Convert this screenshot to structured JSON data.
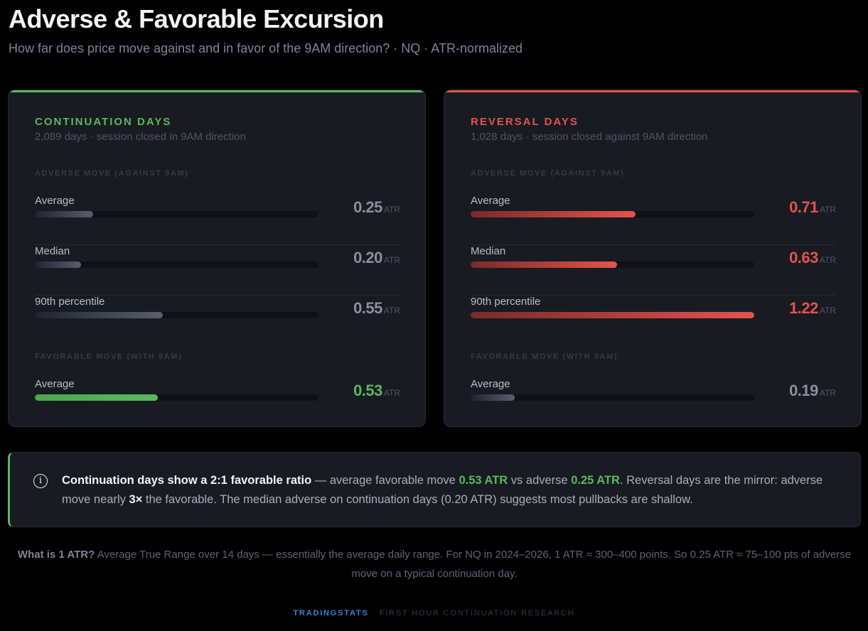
{
  "header": {
    "title": "Adverse & Favorable Excursion",
    "subtitle": "How far does price move against and in favor of the 9AM direction? · NQ · ATR-normalized"
  },
  "colors": {
    "green": "#5cb85c",
    "red": "#e5534b",
    "neutral": "#8a919d"
  },
  "scale_max_atr": 1.22,
  "cards": [
    {
      "title": "CONTINUATION DAYS",
      "desc": "2,089 days · session closed in 9AM direction",
      "accent": "#5cb85c",
      "adverse_label": "ADVERSE MOVE (AGAINST 9AM)",
      "favorable_label": "FAVORABLE MOVE (WITH 9AM)",
      "rows": [
        {
          "label": "Average",
          "value": "0.25",
          "num": 0.25,
          "unit": "ATR",
          "tone": "neutral"
        },
        {
          "label": "Median",
          "value": "0.20",
          "num": 0.2,
          "unit": "ATR",
          "tone": "neutral"
        },
        {
          "label": "90th percentile",
          "value": "0.55",
          "num": 0.55,
          "unit": "ATR",
          "tone": "neutral"
        },
        {
          "label": "Average",
          "value": "0.53",
          "num": 0.53,
          "unit": "ATR",
          "tone": "green"
        }
      ]
    },
    {
      "title": "REVERSAL DAYS",
      "desc": "1,028 days · session closed against 9AM direction",
      "accent": "#e5534b",
      "adverse_label": "ADVERSE MOVE (AGAINST 9AM)",
      "favorable_label": "FAVORABLE MOVE (WITH 9AM)",
      "rows": [
        {
          "label": "Average",
          "value": "0.71",
          "num": 0.71,
          "unit": "ATR",
          "tone": "red"
        },
        {
          "label": "Median",
          "value": "0.63",
          "num": 0.63,
          "unit": "ATR",
          "tone": "red"
        },
        {
          "label": "90th percentile",
          "value": "1.22",
          "num": 1.22,
          "unit": "ATR",
          "tone": "red"
        },
        {
          "label": "Average",
          "value": "0.19",
          "num": 0.19,
          "unit": "ATR",
          "tone": "neutral"
        }
      ]
    }
  ],
  "insight": {
    "icon": "info-icon",
    "bold": "Continuation days show a 2:1 favorable ratio",
    "t1": " — average favorable move ",
    "v1": "0.53 ATR",
    "t2": " vs adverse ",
    "v2": "0.25 ATR",
    "t3": ". Reversal days are the mirror: adverse move nearly ",
    "v3": "3×",
    "t4": " the favorable. The median adverse on continuation days (0.20 ATR) suggests most pullbacks are shallow."
  },
  "note": {
    "bold": "What is 1 ATR?",
    "text": " Average True Range over 14 days — essentially the average daily range. For NQ in 2024–2026, 1 ATR ≈ 300–400 points. So 0.25 ATR ≈ 75–100 pts of adverse move on a typical continuation day."
  },
  "footer": {
    "brand": "TRADINGSTATS",
    "text": " · FIRST HOUR CONTINUATION RESEARCH"
  }
}
